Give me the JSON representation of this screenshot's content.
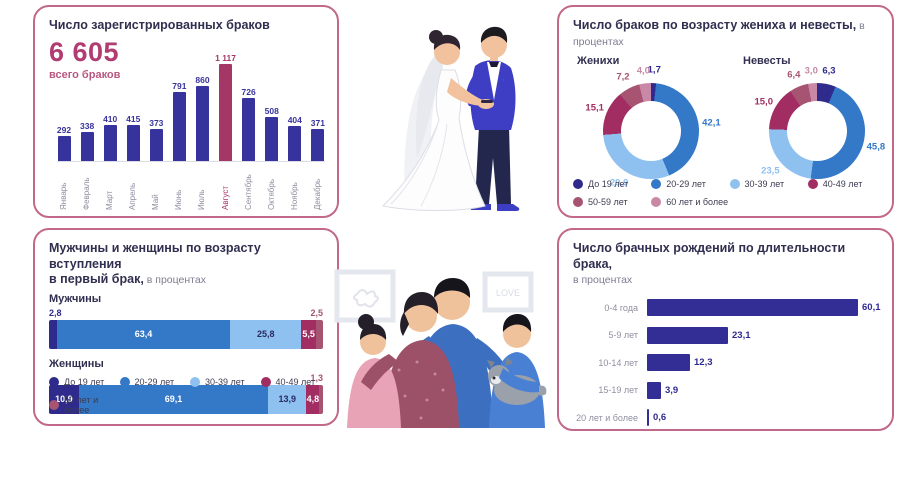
{
  "colors": {
    "border": "#c2688a",
    "accent": "#b13c72",
    "title": "#312f4f",
    "bar_indigo": "#37339c",
    "bar_highlight": "#a53767",
    "age_palette": [
      "#2e2b8c",
      "#3478c8",
      "#8ec1ef",
      "#a12d62",
      "#a65472",
      "#c989a6"
    ]
  },
  "panels": {
    "registered": {
      "title": "Число зарегистрированных браков",
      "total": "6 605",
      "total_caption": "всего браков"
    },
    "by_age": {
      "title_bold": "Число браков по возрасту жениха и невесты,",
      "title_light": " в процентах",
      "grooms_label": "Женихи",
      "brides_label": "Невесты"
    },
    "first_marriage": {
      "title_bold_line1": "Мужчины и женщины по возрасту вступления",
      "title_bold_line2": "в первый брак,",
      "title_light": " в процентах",
      "men_label": "Мужчины",
      "women_label": "Женщины"
    },
    "births": {
      "title_bold": "Число брачных рождений по длительности брака,",
      "title_light": "в процентах"
    }
  },
  "chart_data": [
    {
      "id": "monthly_marriages",
      "type": "bar",
      "title": "Число зарегистрированных браков",
      "total": 6605,
      "categories": [
        "Январь",
        "Февраль",
        "Март",
        "Апрель",
        "Май",
        "Июнь",
        "Июль",
        "Август",
        "Сентябрь",
        "Октябрь",
        "Ноябрь",
        "Декабрь"
      ],
      "values": [
        292,
        338,
        410,
        415,
        373,
        791,
        860,
        1117,
        726,
        508,
        404,
        371
      ],
      "value_labels": [
        "292",
        "338",
        "410",
        "415",
        "373",
        "791",
        "860",
        "1 117",
        "726",
        "508",
        "404",
        "371"
      ],
      "highlight_index": 7,
      "ymax": 1117,
      "bar_color": "#37339c",
      "highlight_color": "#a53767"
    },
    {
      "id": "grooms_age_donut",
      "type": "pie",
      "title": "Женихи",
      "labels": [
        "До 19 лет",
        "20-29 лет",
        "30-39 лет",
        "40-49 лет",
        "50-59 лет",
        "60 лет и более"
      ],
      "values": [
        1.7,
        42.1,
        29.9,
        15.1,
        7.2,
        4.0
      ],
      "value_labels": [
        "1,7",
        "42,1",
        "29,9",
        "15,1",
        "7,2",
        "4,0"
      ]
    },
    {
      "id": "brides_age_donut",
      "type": "pie",
      "title": "Невесты",
      "labels": [
        "До 19 лет",
        "20-29 лет",
        "30-39 лет",
        "40-49 лет",
        "50-59 лет",
        "60 лет и более"
      ],
      "values": [
        6.3,
        45.8,
        23.5,
        15.0,
        6.4,
        3.0
      ],
      "value_labels": [
        "6,3",
        "45,8",
        "23,5",
        "15,0",
        "6,4",
        "3,0"
      ]
    },
    {
      "id": "first_marriage_age",
      "type": "bar",
      "stacked": true,
      "categories": [
        "До 19 лет",
        "20-29 лет",
        "30-39 лет",
        "40-49 лет",
        "50 лет и более"
      ],
      "series": [
        {
          "name": "Мужчины",
          "values": [
            2.8,
            63.4,
            25.8,
            5.5,
            2.5
          ],
          "value_labels": [
            "2,8",
            "63,4",
            "25,8",
            "5,5",
            "2,5"
          ]
        },
        {
          "name": "Женщины",
          "values": [
            10.9,
            69.1,
            13.9,
            4.8,
            1.3
          ],
          "value_labels": [
            "10,9",
            "69,1",
            "13,9",
            "4,8",
            "1,3"
          ]
        }
      ]
    },
    {
      "id": "births_by_duration",
      "type": "bar",
      "orientation": "horizontal",
      "categories": [
        "0-4 года",
        "5-9 лет",
        "10-14 лет",
        "15-19 лет",
        "20 лет и более"
      ],
      "values": [
        60.1,
        23.1,
        12.3,
        3.9,
        0.6
      ],
      "value_labels": [
        "60,1",
        "23,1",
        "12,3",
        "3,9",
        "0,6"
      ],
      "xmax": 62,
      "bar_color": "#332e96"
    }
  ],
  "legend_age6": [
    {
      "label": "До 19 лет",
      "color": "#2e2b8c"
    },
    {
      "label": "20-29 лет",
      "color": "#3478c8"
    },
    {
      "label": "30-39 лет",
      "color": "#8ec1ef"
    },
    {
      "label": "40-49 лет",
      "color": "#a12d62"
    },
    {
      "label": "50-59 лет",
      "color": "#a65472"
    },
    {
      "label": "60 лет и более",
      "color": "#c989a6"
    }
  ],
  "legend_age5": [
    {
      "label": "До 19 лет",
      "color": "#2e2b8c"
    },
    {
      "label": "20-29 лет",
      "color": "#3478c8"
    },
    {
      "label": "30-39 лет",
      "color": "#8ec1ef"
    },
    {
      "label": "40-49 лет",
      "color": "#a12d62"
    },
    {
      "label": "50 лет и более",
      "color": "#a65472"
    }
  ],
  "illustrations": {
    "wedding_alt": "Жених и невеста",
    "family_alt": "Семья с детьми и собакой",
    "frame_text": "LOVE"
  }
}
